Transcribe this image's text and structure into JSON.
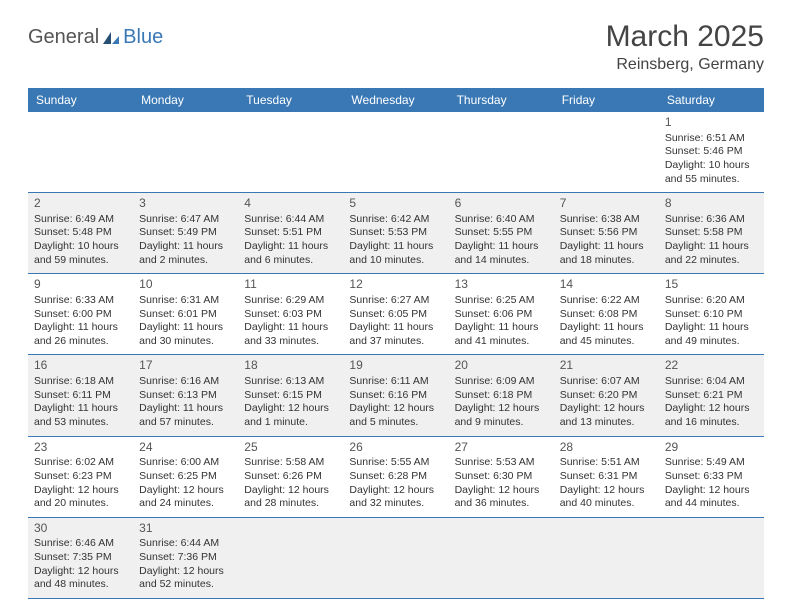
{
  "logo": {
    "part1": "General",
    "part2": "Blue"
  },
  "title": {
    "month": "March 2025",
    "location": "Reinsberg, Germany"
  },
  "colors": {
    "header_bg": "#3a78b5",
    "header_fg": "#ffffff",
    "row_alt_bg": "#f0f0f0",
    "row_bg": "#ffffff",
    "border": "#3a78b5",
    "text": "#333333",
    "logo_gray": "#555555",
    "logo_blue": "#3a78b5"
  },
  "days": [
    "Sunday",
    "Monday",
    "Tuesday",
    "Wednesday",
    "Thursday",
    "Friday",
    "Saturday"
  ],
  "weeks": [
    [
      null,
      null,
      null,
      null,
      null,
      null,
      {
        "n": "1",
        "sr": "Sunrise: 6:51 AM",
        "ss": "Sunset: 5:46 PM",
        "dl": "Daylight: 10 hours and 55 minutes."
      }
    ],
    [
      {
        "n": "2",
        "sr": "Sunrise: 6:49 AM",
        "ss": "Sunset: 5:48 PM",
        "dl": "Daylight: 10 hours and 59 minutes."
      },
      {
        "n": "3",
        "sr": "Sunrise: 6:47 AM",
        "ss": "Sunset: 5:49 PM",
        "dl": "Daylight: 11 hours and 2 minutes."
      },
      {
        "n": "4",
        "sr": "Sunrise: 6:44 AM",
        "ss": "Sunset: 5:51 PM",
        "dl": "Daylight: 11 hours and 6 minutes."
      },
      {
        "n": "5",
        "sr": "Sunrise: 6:42 AM",
        "ss": "Sunset: 5:53 PM",
        "dl": "Daylight: 11 hours and 10 minutes."
      },
      {
        "n": "6",
        "sr": "Sunrise: 6:40 AM",
        "ss": "Sunset: 5:55 PM",
        "dl": "Daylight: 11 hours and 14 minutes."
      },
      {
        "n": "7",
        "sr": "Sunrise: 6:38 AM",
        "ss": "Sunset: 5:56 PM",
        "dl": "Daylight: 11 hours and 18 minutes."
      },
      {
        "n": "8",
        "sr": "Sunrise: 6:36 AM",
        "ss": "Sunset: 5:58 PM",
        "dl": "Daylight: 11 hours and 22 minutes."
      }
    ],
    [
      {
        "n": "9",
        "sr": "Sunrise: 6:33 AM",
        "ss": "Sunset: 6:00 PM",
        "dl": "Daylight: 11 hours and 26 minutes."
      },
      {
        "n": "10",
        "sr": "Sunrise: 6:31 AM",
        "ss": "Sunset: 6:01 PM",
        "dl": "Daylight: 11 hours and 30 minutes."
      },
      {
        "n": "11",
        "sr": "Sunrise: 6:29 AM",
        "ss": "Sunset: 6:03 PM",
        "dl": "Daylight: 11 hours and 33 minutes."
      },
      {
        "n": "12",
        "sr": "Sunrise: 6:27 AM",
        "ss": "Sunset: 6:05 PM",
        "dl": "Daylight: 11 hours and 37 minutes."
      },
      {
        "n": "13",
        "sr": "Sunrise: 6:25 AM",
        "ss": "Sunset: 6:06 PM",
        "dl": "Daylight: 11 hours and 41 minutes."
      },
      {
        "n": "14",
        "sr": "Sunrise: 6:22 AM",
        "ss": "Sunset: 6:08 PM",
        "dl": "Daylight: 11 hours and 45 minutes."
      },
      {
        "n": "15",
        "sr": "Sunrise: 6:20 AM",
        "ss": "Sunset: 6:10 PM",
        "dl": "Daylight: 11 hours and 49 minutes."
      }
    ],
    [
      {
        "n": "16",
        "sr": "Sunrise: 6:18 AM",
        "ss": "Sunset: 6:11 PM",
        "dl": "Daylight: 11 hours and 53 minutes."
      },
      {
        "n": "17",
        "sr": "Sunrise: 6:16 AM",
        "ss": "Sunset: 6:13 PM",
        "dl": "Daylight: 11 hours and 57 minutes."
      },
      {
        "n": "18",
        "sr": "Sunrise: 6:13 AM",
        "ss": "Sunset: 6:15 PM",
        "dl": "Daylight: 12 hours and 1 minute."
      },
      {
        "n": "19",
        "sr": "Sunrise: 6:11 AM",
        "ss": "Sunset: 6:16 PM",
        "dl": "Daylight: 12 hours and 5 minutes."
      },
      {
        "n": "20",
        "sr": "Sunrise: 6:09 AM",
        "ss": "Sunset: 6:18 PM",
        "dl": "Daylight: 12 hours and 9 minutes."
      },
      {
        "n": "21",
        "sr": "Sunrise: 6:07 AM",
        "ss": "Sunset: 6:20 PM",
        "dl": "Daylight: 12 hours and 13 minutes."
      },
      {
        "n": "22",
        "sr": "Sunrise: 6:04 AM",
        "ss": "Sunset: 6:21 PM",
        "dl": "Daylight: 12 hours and 16 minutes."
      }
    ],
    [
      {
        "n": "23",
        "sr": "Sunrise: 6:02 AM",
        "ss": "Sunset: 6:23 PM",
        "dl": "Daylight: 12 hours and 20 minutes."
      },
      {
        "n": "24",
        "sr": "Sunrise: 6:00 AM",
        "ss": "Sunset: 6:25 PM",
        "dl": "Daylight: 12 hours and 24 minutes."
      },
      {
        "n": "25",
        "sr": "Sunrise: 5:58 AM",
        "ss": "Sunset: 6:26 PM",
        "dl": "Daylight: 12 hours and 28 minutes."
      },
      {
        "n": "26",
        "sr": "Sunrise: 5:55 AM",
        "ss": "Sunset: 6:28 PM",
        "dl": "Daylight: 12 hours and 32 minutes."
      },
      {
        "n": "27",
        "sr": "Sunrise: 5:53 AM",
        "ss": "Sunset: 6:30 PM",
        "dl": "Daylight: 12 hours and 36 minutes."
      },
      {
        "n": "28",
        "sr": "Sunrise: 5:51 AM",
        "ss": "Sunset: 6:31 PM",
        "dl": "Daylight: 12 hours and 40 minutes."
      },
      {
        "n": "29",
        "sr": "Sunrise: 5:49 AM",
        "ss": "Sunset: 6:33 PM",
        "dl": "Daylight: 12 hours and 44 minutes."
      }
    ],
    [
      {
        "n": "30",
        "sr": "Sunrise: 6:46 AM",
        "ss": "Sunset: 7:35 PM",
        "dl": "Daylight: 12 hours and 48 minutes."
      },
      {
        "n": "31",
        "sr": "Sunrise: 6:44 AM",
        "ss": "Sunset: 7:36 PM",
        "dl": "Daylight: 12 hours and 52 minutes."
      },
      null,
      null,
      null,
      null,
      null
    ]
  ]
}
